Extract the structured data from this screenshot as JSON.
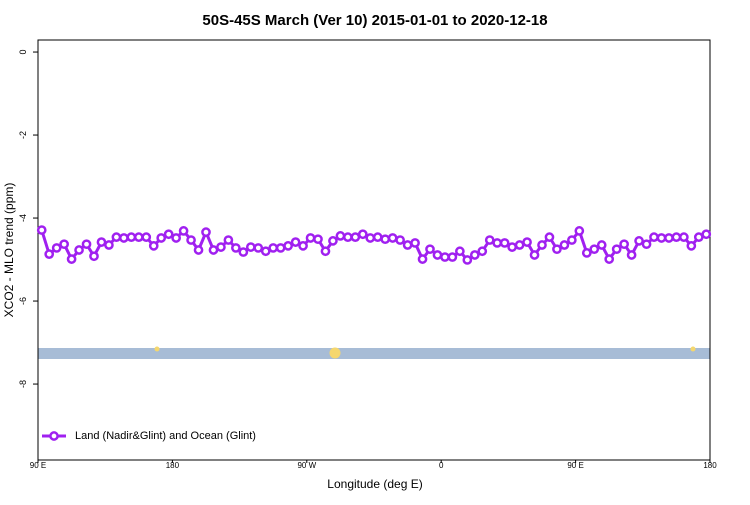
{
  "chart_data": {
    "type": "line",
    "title": "50S-45S March (Ver 10)   2015-01-01 to 2020-12-18",
    "x_label": "Longitude (deg E)",
    "y_label": "XCO2 - MLO trend (ppm)",
    "x": [
      92.5,
      97.5,
      102.5,
      107.5,
      112.5,
      117.5,
      122.5,
      127.5,
      132.5,
      137.5,
      142.5,
      147.5,
      152.5,
      157.5,
      162.5,
      167.5,
      172.5,
      177.5,
      182.5,
      187.5,
      192.5,
      197.5,
      202.5,
      207.5,
      212.5,
      217.5,
      222.5,
      227.5,
      232.5,
      237.5,
      242.5,
      247.5,
      252.5,
      257.5,
      262.5,
      267.5,
      272.5,
      277.5,
      282.5,
      287.5,
      292.5,
      297.5,
      302.5,
      307.5,
      312.5,
      317.5,
      322.5,
      327.5,
      332.5,
      337.5,
      342.5,
      347.5,
      352.5,
      357.5,
      362.5,
      367.5,
      372.5,
      377.5,
      382.5,
      387.5,
      392.5,
      397.5,
      402.5,
      407.5,
      412.5,
      417.5,
      422.5,
      427.5,
      432.5,
      437.5,
      442.5,
      447.5,
      452.5,
      457.5,
      462.5,
      467.5,
      472.5,
      477.5,
      482.5,
      487.5,
      492.5,
      497.5,
      502.5,
      507.5,
      512.5,
      517.5,
      522.5,
      527.5,
      532.5,
      537.5
    ],
    "series": [
      {
        "name": "Land (Nadir&Glint) and Ocean (Glint)",
        "color": "#a020f0",
        "values": [
          -4.29,
          -4.87,
          -4.72,
          -4.63,
          -4.99,
          -4.77,
          -4.63,
          -4.92,
          -4.58,
          -4.65,
          -4.46,
          -4.48,
          -4.46,
          -4.46,
          -4.46,
          -4.67,
          -4.48,
          -4.39,
          -4.48,
          -4.31,
          -4.53,
          -4.77,
          -4.34,
          -4.77,
          -4.7,
          -4.53,
          -4.72,
          -4.82,
          -4.7,
          -4.72,
          -4.8,
          -4.72,
          -4.72,
          -4.67,
          -4.58,
          -4.67,
          -4.48,
          -4.51,
          -4.8,
          -4.55,
          -4.43,
          -4.46,
          -4.46,
          -4.39,
          -4.48,
          -4.46,
          -4.51,
          -4.48,
          -4.53,
          -4.65,
          -4.6,
          -4.99,
          -4.75,
          -4.89,
          -4.94,
          -4.94,
          -4.8,
          -5.01,
          -4.89,
          -4.8,
          -4.53,
          -4.6,
          -4.6,
          -4.7,
          -4.65,
          -4.58,
          -4.89,
          -4.65,
          -4.46,
          -4.75,
          -4.65,
          -4.53,
          -4.31,
          -4.84,
          -4.75,
          -4.65,
          -4.99,
          -4.75,
          -4.63,
          -4.89,
          -4.55,
          -4.63,
          -4.46,
          -4.48,
          -4.48,
          -4.46,
          -4.46,
          -4.67,
          -4.46,
          -4.39
        ]
      }
    ],
    "xlim": [
      90,
      540
    ],
    "xticks": [
      {
        "value": 90,
        "label": "90 E"
      },
      {
        "value": 180,
        "label": "180"
      },
      {
        "value": 270,
        "label": "90 W"
      },
      {
        "value": 360,
        "label": "0"
      },
      {
        "value": 450,
        "label": "90 E"
      },
      {
        "value": 540,
        "label": "180"
      }
    ],
    "ylim": [
      -9.83,
      0.29
    ],
    "yticks": [
      0,
      -2,
      -4,
      -6,
      -8
    ],
    "legend": "bottom-left"
  }
}
